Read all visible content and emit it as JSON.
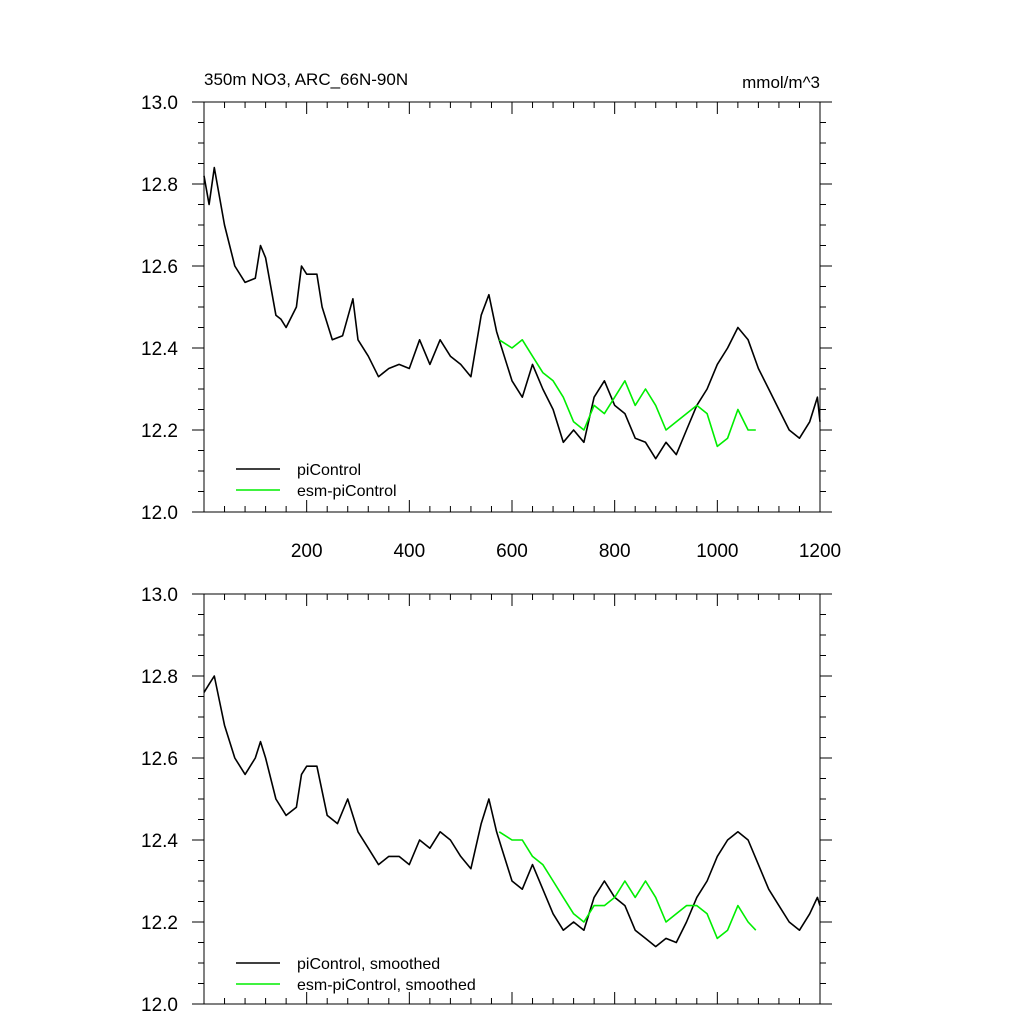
{
  "chart_data": [
    {
      "type": "line",
      "title": "350m NO3, ARC_66N-90N",
      "units": "mmol/m^3",
      "xlim": [
        0,
        1200
      ],
      "ylim": [
        12.0,
        13.0
      ],
      "x_tick_labels": [
        "200",
        "400",
        "600",
        "800",
        "1000",
        "1200"
      ],
      "x_tick_values": [
        200,
        400,
        600,
        800,
        1000,
        1200
      ],
      "y_tick_labels": [
        "12.0",
        "12.2",
        "12.4",
        "12.6",
        "12.8",
        "13.0"
      ],
      "y_tick_values": [
        12.0,
        12.2,
        12.4,
        12.6,
        12.8,
        13.0
      ],
      "legend_position": "bottom-left",
      "series": [
        {
          "name": "piControl",
          "color": "#000000",
          "x": [
            0,
            10,
            20,
            40,
            60,
            80,
            100,
            110,
            120,
            140,
            150,
            160,
            180,
            190,
            200,
            220,
            230,
            250,
            270,
            290,
            300,
            320,
            340,
            360,
            380,
            400,
            420,
            440,
            460,
            480,
            500,
            520,
            540,
            555,
            570,
            580,
            600,
            620,
            640,
            660,
            680,
            700,
            720,
            740,
            760,
            780,
            800,
            820,
            840,
            860,
            880,
            900,
            920,
            940,
            960,
            980,
            1000,
            1020,
            1040,
            1060,
            1080,
            1100,
            1120,
            1140,
            1160,
            1180,
            1195,
            1200
          ],
          "y": [
            12.82,
            12.75,
            12.84,
            12.7,
            12.6,
            12.56,
            12.57,
            12.65,
            12.62,
            12.48,
            12.47,
            12.45,
            12.5,
            12.6,
            12.58,
            12.58,
            12.5,
            12.42,
            12.43,
            12.52,
            12.42,
            12.38,
            12.33,
            12.35,
            12.36,
            12.35,
            12.42,
            12.36,
            12.42,
            12.38,
            12.36,
            12.33,
            12.48,
            12.53,
            12.44,
            12.4,
            12.32,
            12.28,
            12.36,
            12.3,
            12.25,
            12.17,
            12.2,
            12.17,
            12.28,
            12.32,
            12.26,
            12.24,
            12.18,
            12.17,
            12.13,
            12.17,
            12.14,
            12.2,
            12.26,
            12.3,
            12.36,
            12.4,
            12.45,
            12.42,
            12.35,
            12.3,
            12.25,
            12.2,
            12.18,
            12.22,
            12.28,
            12.22
          ]
        },
        {
          "name": "esm-piControl",
          "color": "#00ee00",
          "x": [
            575,
            600,
            620,
            640,
            660,
            680,
            700,
            720,
            740,
            760,
            780,
            800,
            820,
            840,
            860,
            880,
            900,
            920,
            940,
            960,
            980,
            1000,
            1020,
            1040,
            1060,
            1075
          ],
          "y": [
            12.42,
            12.4,
            12.42,
            12.38,
            12.34,
            12.32,
            12.28,
            12.22,
            12.2,
            12.26,
            12.24,
            12.28,
            12.32,
            12.26,
            12.3,
            12.26,
            12.2,
            12.22,
            12.24,
            12.26,
            12.24,
            12.16,
            12.18,
            12.25,
            12.2,
            12.2
          ]
        }
      ]
    },
    {
      "type": "line",
      "title": "",
      "units": "",
      "xlim": [
        0,
        1200
      ],
      "ylim": [
        12.0,
        13.0
      ],
      "y_tick_labels": [
        "12.0",
        "12.2",
        "12.4",
        "12.6",
        "12.8",
        "13.0"
      ],
      "y_tick_values": [
        12.0,
        12.2,
        12.4,
        12.6,
        12.8,
        13.0
      ],
      "legend_position": "bottom-left",
      "series": [
        {
          "name": "piControl, smoothed",
          "color": "#000000",
          "x": [
            0,
            10,
            20,
            30,
            40,
            60,
            80,
            100,
            110,
            120,
            140,
            160,
            180,
            190,
            200,
            220,
            240,
            260,
            280,
            300,
            320,
            340,
            360,
            380,
            400,
            420,
            440,
            460,
            480,
            500,
            520,
            540,
            555,
            570,
            580,
            600,
            620,
            640,
            660,
            680,
            700,
            720,
            740,
            760,
            780,
            800,
            820,
            840,
            860,
            880,
            900,
            920,
            940,
            960,
            980,
            1000,
            1020,
            1040,
            1060,
            1080,
            1100,
            1120,
            1140,
            1160,
            1180,
            1195,
            1200
          ],
          "y": [
            12.76,
            12.78,
            12.8,
            12.74,
            12.68,
            12.6,
            12.56,
            12.6,
            12.64,
            12.6,
            12.5,
            12.46,
            12.48,
            12.56,
            12.58,
            12.58,
            12.46,
            12.44,
            12.5,
            12.42,
            12.38,
            12.34,
            12.36,
            12.36,
            12.34,
            12.4,
            12.38,
            12.42,
            12.4,
            12.36,
            12.33,
            12.44,
            12.5,
            12.42,
            12.38,
            12.3,
            12.28,
            12.34,
            12.28,
            12.22,
            12.18,
            12.2,
            12.18,
            12.26,
            12.3,
            12.26,
            12.24,
            12.18,
            12.16,
            12.14,
            12.16,
            12.15,
            12.2,
            12.26,
            12.3,
            12.36,
            12.4,
            12.42,
            12.4,
            12.34,
            12.28,
            12.24,
            12.2,
            12.18,
            12.22,
            12.26,
            12.24
          ]
        },
        {
          "name": "esm-piControl, smoothed",
          "color": "#00ee00",
          "x": [
            575,
            600,
            620,
            640,
            660,
            680,
            700,
            720,
            740,
            760,
            780,
            800,
            820,
            840,
            860,
            880,
            900,
            920,
            940,
            960,
            980,
            1000,
            1020,
            1040,
            1060,
            1075
          ],
          "y": [
            12.42,
            12.4,
            12.4,
            12.36,
            12.34,
            12.3,
            12.26,
            12.22,
            12.2,
            12.24,
            12.24,
            12.26,
            12.3,
            12.26,
            12.3,
            12.26,
            12.2,
            12.22,
            12.24,
            12.24,
            12.22,
            12.16,
            12.18,
            12.24,
            12.2,
            12.18
          ]
        }
      ]
    }
  ]
}
